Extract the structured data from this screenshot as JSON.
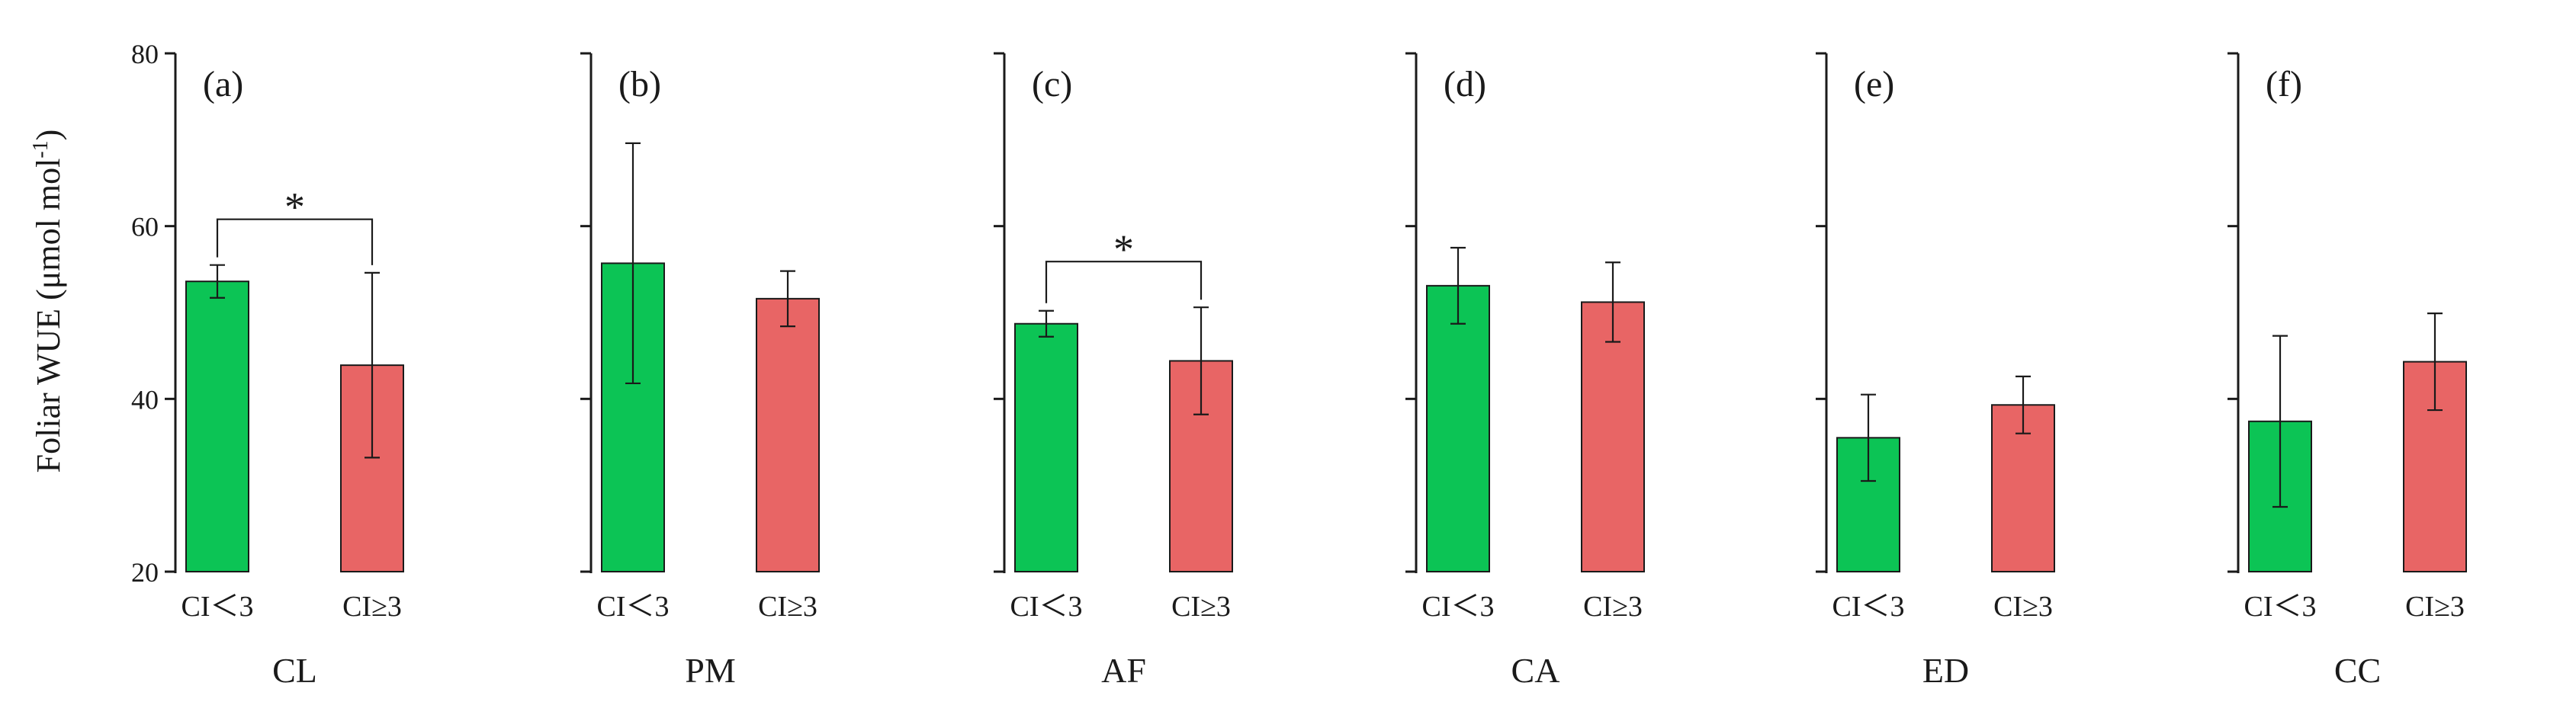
{
  "chart_data": {
    "type": "bar",
    "ylabel": "Foliar WUE (μmol mol",
    "ylabel_sup": "-1",
    "ylabel_close": ")",
    "ylim": [
      20,
      80
    ],
    "yticks": [
      20,
      40,
      60,
      80
    ],
    "colors": {
      "CI<3": "#0cc455",
      "CI>=3": "#e86565"
    },
    "panels": [
      {
        "label": "(a)",
        "group": "CL",
        "categories": [
          "CI＜3",
          "CI≥3"
        ],
        "values": [
          53.6,
          43.9
        ],
        "errors": [
          1.9,
          10.7
        ],
        "significance": "*"
      },
      {
        "label": "(b)",
        "group": "PM",
        "categories": [
          "CI＜3",
          "CI≥3"
        ],
        "values": [
          55.7,
          51.6
        ],
        "errors": [
          13.9,
          3.2
        ],
        "significance": ""
      },
      {
        "label": "(c)",
        "group": "AF",
        "categories": [
          "CI＜3",
          "CI≥3"
        ],
        "values": [
          48.7,
          44.4
        ],
        "errors": [
          1.5,
          6.2
        ],
        "significance": "*"
      },
      {
        "label": "(d)",
        "group": "CA",
        "categories": [
          "CI＜3",
          "CI≥3"
        ],
        "values": [
          53.1,
          51.2
        ],
        "errors": [
          4.4,
          4.6
        ],
        "significance": ""
      },
      {
        "label": "(e)",
        "group": "ED",
        "categories": [
          "CI＜3",
          "CI≥3"
        ],
        "values": [
          35.5,
          39.3
        ],
        "errors": [
          5.0,
          3.3
        ],
        "significance": ""
      },
      {
        "label": "(f)",
        "group": "CC",
        "categories": [
          "CI＜3",
          "CI≥3"
        ],
        "values": [
          37.4,
          44.3
        ],
        "errors": [
          9.9,
          5.6
        ],
        "significance": ""
      }
    ]
  }
}
